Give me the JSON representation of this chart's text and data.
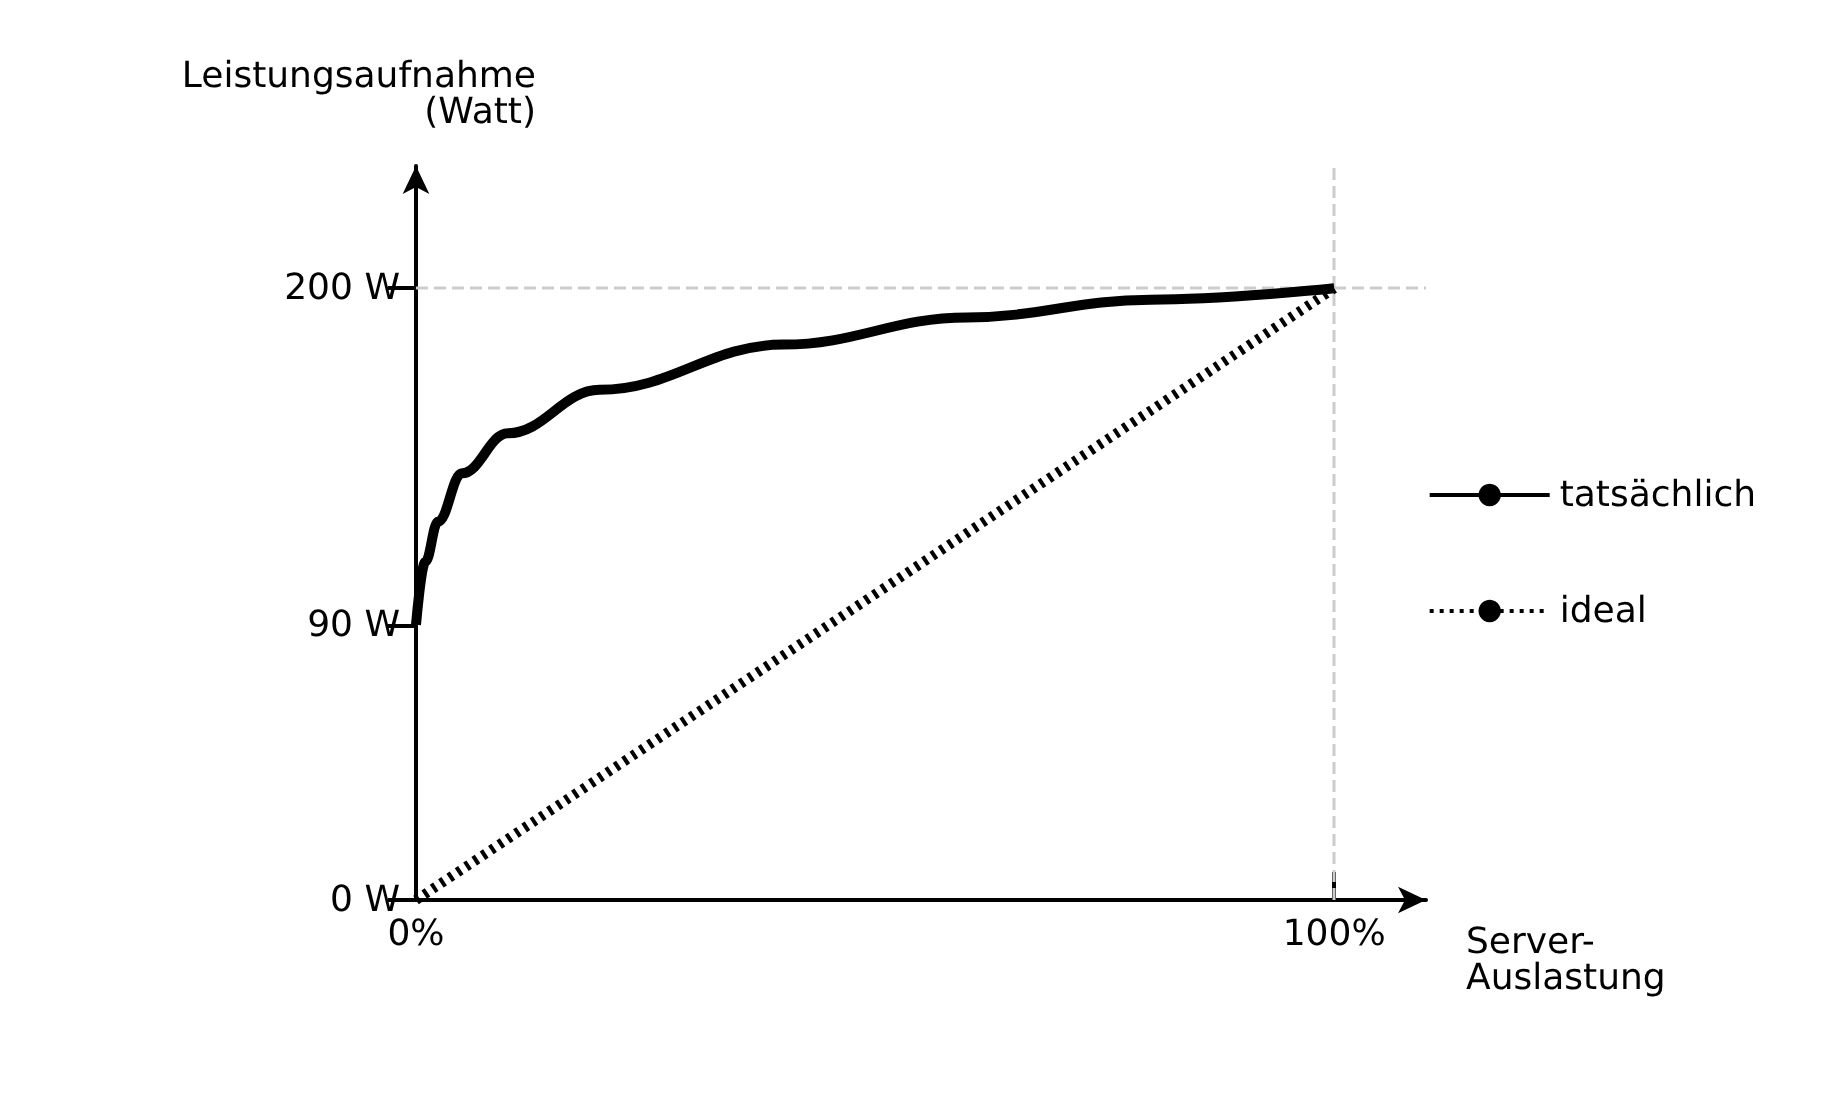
{
  "chart_data": {
    "type": "line",
    "xlabel": "Server-\nAuslastung",
    "ylabel": "Leistungsaufnahme\n(Watt)",
    "xlim": [
      0,
      110
    ],
    "ylim": [
      0,
      240
    ],
    "xticks": [
      {
        "value": 0,
        "label": "0%"
      },
      {
        "value": 100,
        "label": "100%"
      }
    ],
    "yticks": [
      {
        "value": 0,
        "label": "0 W"
      },
      {
        "value": 90,
        "label": "90 W"
      },
      {
        "value": 200,
        "label": "200 W"
      }
    ],
    "series": [
      {
        "name": "tatsächlich",
        "color": "#000000",
        "line_style": "solid",
        "x": [
          0,
          1,
          2.4,
          5,
          10,
          20,
          40,
          60,
          80,
          100
        ],
        "values": [
          90,
          110.5,
          123.7,
          139.5,
          152.6,
          166.8,
          181.6,
          190.5,
          196.3,
          200
        ]
      },
      {
        "name": "ideal",
        "color": "#000000",
        "line_style": "dotted",
        "x": [
          0,
          100
        ],
        "values": [
          0,
          200
        ]
      }
    ],
    "ref_lines": [
      {
        "axis": "y",
        "value": 200,
        "color": "#cccccc",
        "line_style": "dashed"
      },
      {
        "axis": "x",
        "value": 100,
        "color": "#cccccc",
        "line_style": "dashed"
      }
    ],
    "marker": "none",
    "grid": false,
    "legend": "right"
  }
}
